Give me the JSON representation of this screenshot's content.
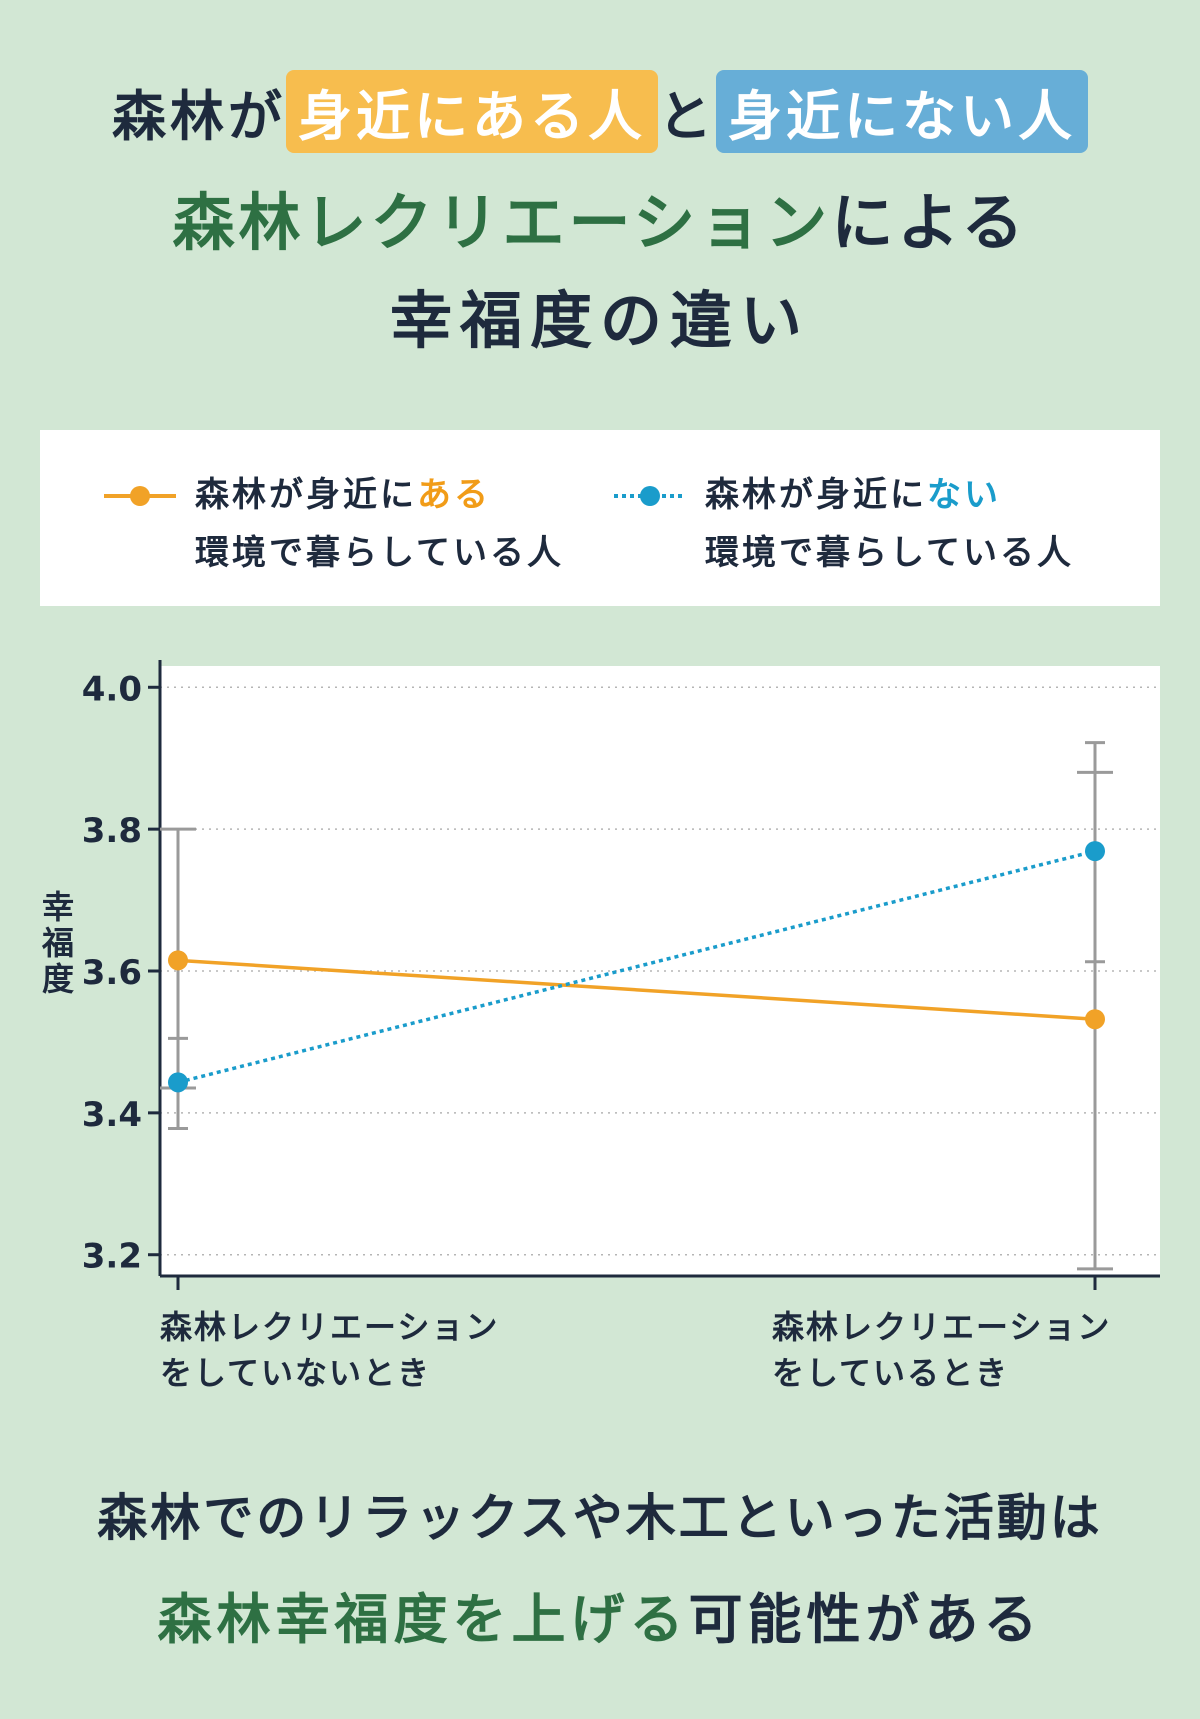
{
  "header": {
    "line1_prefix": "森林が",
    "line1_highlight_a": "身近にある人",
    "line1_mid": "と",
    "line1_highlight_b": "身近にない人",
    "line2_green": "森林レクリエーション",
    "line2_rest": "による",
    "line3": "幸福度の違い"
  },
  "legend": {
    "near": {
      "prefix": "森林が身近に",
      "accent": "ある",
      "line2": "環境で暮らしている人"
    },
    "far": {
      "prefix": "森林が身近に",
      "accent": "ない",
      "line2": "環境で暮らしている人"
    }
  },
  "chart_data": {
    "type": "line",
    "title": "",
    "ylabel": "幸福度",
    "ylim": [
      3.17,
      4.03
    ],
    "yticks": [
      "3.2",
      "3.4",
      "3.6",
      "3.8",
      "4.0"
    ],
    "grid": true,
    "legend_position": "top",
    "categories": [
      [
        "森林レクリエーション",
        "をしていないとき"
      ],
      [
        "森林レクリエーション",
        "をしているとき"
      ]
    ],
    "series": [
      {
        "name": "森林が身近にある環境で暮らしている人",
        "color": "#f1a227",
        "style": "solid",
        "values": [
          3.615,
          3.532
        ],
        "error_low": [
          3.435,
          3.18
        ],
        "error_high": [
          3.8,
          3.88
        ]
      },
      {
        "name": "森林が身近にない環境で暮らしている人",
        "color": "#1a9ccb",
        "style": "dotted",
        "values": [
          3.443,
          3.769
        ],
        "error_low": [
          3.378,
          3.613
        ],
        "error_high": [
          3.505,
          3.922
        ]
      }
    ]
  },
  "conclusion": {
    "line1": "森林でのリラックスや木工といった活動は",
    "line2_green": "森林幸福度を上げる",
    "line2_rest": "可能性がある"
  }
}
